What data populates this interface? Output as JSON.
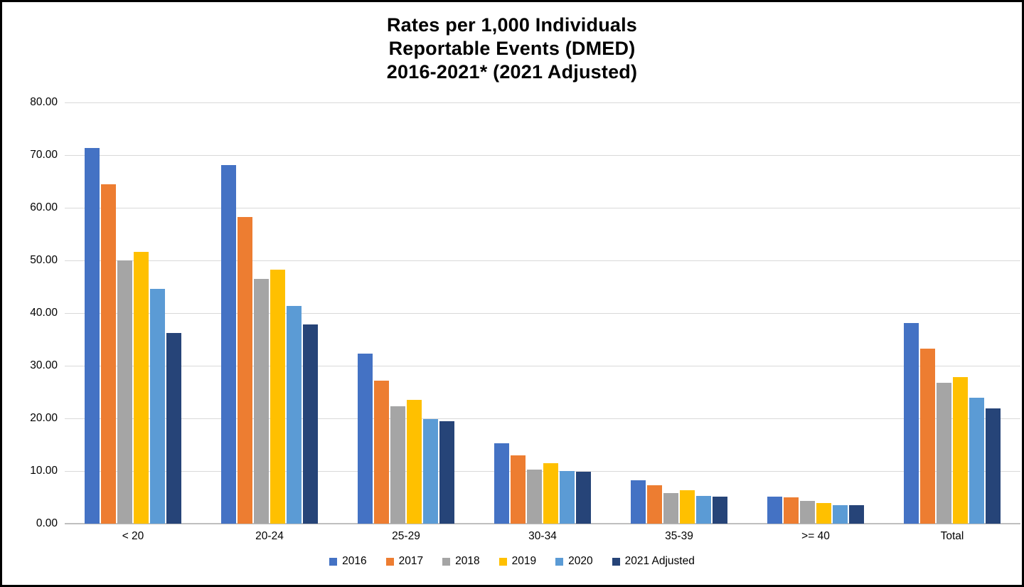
{
  "title": {
    "line1": "Rates per 1,000 Individuals",
    "line2": "Reportable Events (DMED)",
    "line3": "2016-2021* (2021 Adjusted)"
  },
  "chart_data": {
    "type": "bar",
    "title": "Rates per 1,000 Individuals Reportable Events (DMED) 2016-2021* (2021 Adjusted)",
    "categories": [
      "< 20",
      "20-24",
      "25-29",
      "30-34",
      "35-39",
      ">= 40",
      "Total"
    ],
    "series": [
      {
        "name": "2016",
        "color": "#4472C4",
        "values": [
          71.3,
          68.1,
          32.3,
          15.3,
          8.2,
          5.2,
          38.1
        ]
      },
      {
        "name": "2017",
        "color": "#ED7D31",
        "values": [
          64.5,
          58.3,
          27.2,
          13.0,
          7.3,
          5.0,
          33.2
        ]
      },
      {
        "name": "2018",
        "color": "#A5A5A5",
        "values": [
          50.0,
          46.5,
          22.3,
          10.3,
          5.8,
          4.3,
          26.7
        ]
      },
      {
        "name": "2019",
        "color": "#FFC000",
        "values": [
          51.6,
          48.3,
          23.5,
          11.5,
          6.3,
          3.9,
          27.8
        ]
      },
      {
        "name": "2020",
        "color": "#5B9BD5",
        "values": [
          44.6,
          41.4,
          19.9,
          10.0,
          5.3,
          3.5,
          23.9
        ]
      },
      {
        "name": "2021 Adjusted",
        "color": "#264478",
        "values": [
          36.2,
          37.9,
          19.5,
          9.9,
          5.1,
          3.5,
          21.9
        ]
      }
    ],
    "ylim": [
      0,
      80
    ],
    "ytick_labels": [
      "80.00",
      "70.00",
      "60.00",
      "50.00",
      "40.00",
      "30.00",
      "20.00",
      "10.00",
      "0.00"
    ],
    "grid": "horizontal",
    "gridline_color": "#D9D9D9",
    "axis_line_color": "#BFBFBF",
    "legend_position": "bottom"
  }
}
